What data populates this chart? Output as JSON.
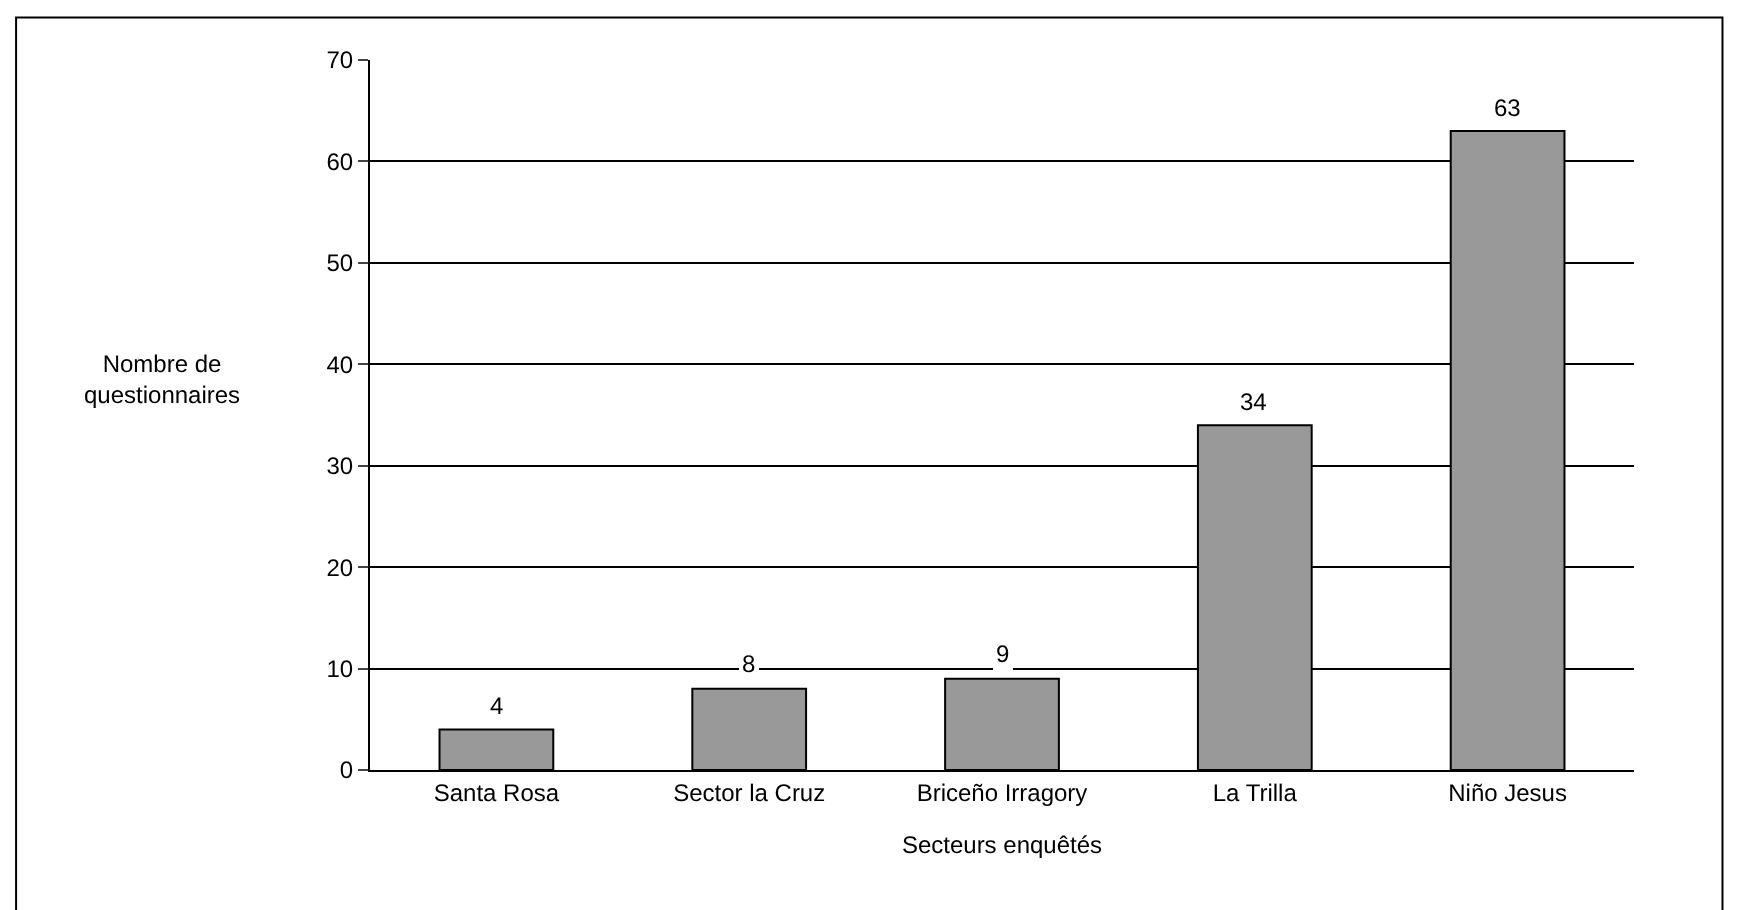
{
  "chart_data": {
    "type": "bar",
    "xlabel": "Secteurs enquêtés",
    "ylabel": "Nombre de\nquestionnaires",
    "categories": [
      "Santa Rosa",
      "Sector la Cruz",
      "Briceño Irragory",
      "La Trilla",
      "Niño Jesus"
    ],
    "values": [
      4,
      8,
      9,
      34,
      63
    ],
    "color": "#999999",
    "data_labels": true,
    "ylim": [
      0,
      70
    ],
    "yticks": [
      0,
      10,
      20,
      30,
      40,
      50,
      60,
      70
    ],
    "grid": "y"
  }
}
